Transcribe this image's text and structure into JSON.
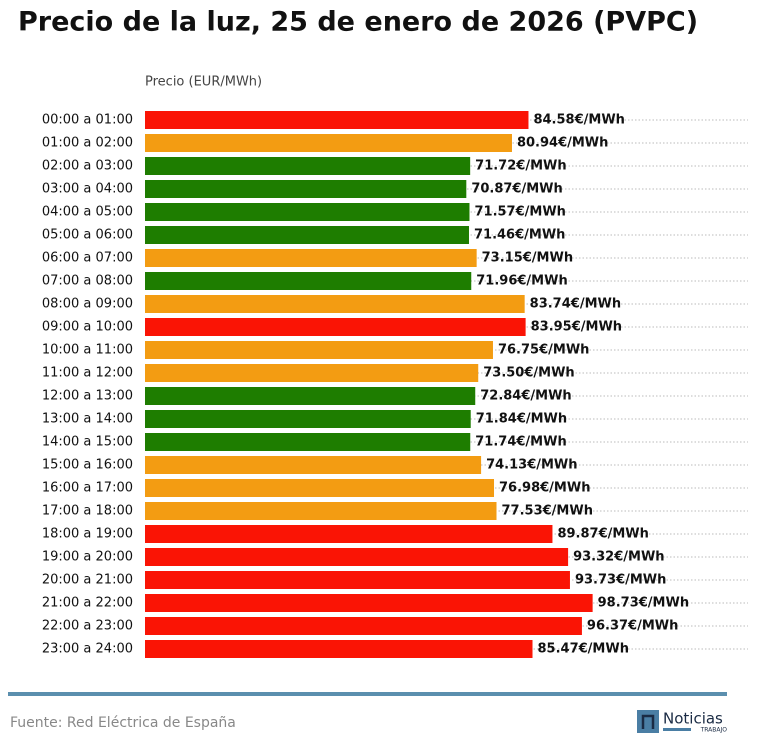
{
  "chart_data": {
    "type": "barh",
    "title": "Precio de la luz, 25 de enero de 2026 (PVPC)",
    "x_label": "Precio (EUR/MWh)",
    "source": "Fuente: Red Eléctrica de España",
    "logo": {
      "name": "Noticias",
      "sub": "TRABAJO"
    },
    "categories": [
      "00:00 a 01:00",
      "01:00 a 02:00",
      "02:00 a 03:00",
      "03:00 a 04:00",
      "04:00 a 05:00",
      "05:00 a 06:00",
      "06:00 a 07:00",
      "07:00 a 08:00",
      "08:00 a 09:00",
      "09:00 a 10:00",
      "10:00 a 11:00",
      "11:00 a 12:00",
      "12:00 a 13:00",
      "13:00 a 14:00",
      "14:00 a 15:00",
      "15:00 a 16:00",
      "16:00 a 17:00",
      "17:00 a 18:00",
      "18:00 a 19:00",
      "19:00 a 20:00",
      "20:00 a 21:00",
      "21:00 a 22:00",
      "22:00 a 23:00",
      "23:00 a 24:00"
    ],
    "values": [
      84.58,
      80.94,
      71.72,
      70.87,
      71.57,
      71.46,
      73.15,
      71.96,
      83.74,
      83.95,
      76.75,
      73.5,
      72.84,
      71.84,
      71.74,
      74.13,
      76.98,
      77.53,
      89.87,
      93.32,
      93.73,
      98.73,
      96.37,
      85.47
    ],
    "value_labels": [
      "84.58€/MWh",
      "80.94€/MWh",
      "71.72€/MWh",
      "70.87€/MWh",
      "71.57€/MWh",
      "71.46€/MWh",
      "73.15€/MWh",
      "71.96€/MWh",
      "83.74€/MWh",
      "83.95€/MWh",
      "76.75€/MWh",
      "73.50€/MWh",
      "72.84€/MWh",
      "71.84€/MWh",
      "71.74€/MWh",
      "74.13€/MWh",
      "76.98€/MWh",
      "77.53€/MWh",
      "89.87€/MWh",
      "93.32€/MWh",
      "93.73€/MWh",
      "98.73€/MWh",
      "96.37€/MWh",
      "85.47€/MWh"
    ],
    "colors": [
      "#fa1405",
      "#f39c12",
      "#1e7d00",
      "#1e7d00",
      "#1e7d00",
      "#1e7d00",
      "#f39c12",
      "#1e7d00",
      "#f39c12",
      "#fa1405",
      "#f39c12",
      "#f39c12",
      "#1e7d00",
      "#1e7d00",
      "#1e7d00",
      "#f39c12",
      "#f39c12",
      "#f39c12",
      "#fa1405",
      "#fa1405",
      "#fa1405",
      "#fa1405",
      "#fa1405",
      "#fa1405"
    ],
    "xlim": [
      0,
      133
    ]
  }
}
